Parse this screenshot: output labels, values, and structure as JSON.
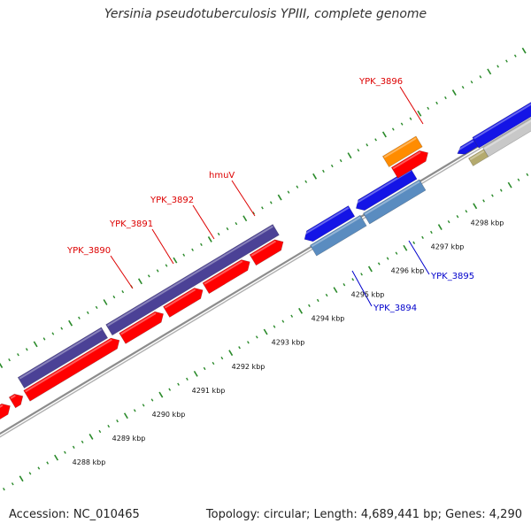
{
  "title": "Yersinia pseudotuberculosis YPIII, complete genome",
  "footer": {
    "accession": "Accession: NC_010465",
    "summary": "Topology: circular; Length: 4,689,441 bp; Genes: 4,290"
  },
  "colors": {
    "red": "#ff0000",
    "navy": "#4b4196",
    "blue": "#1414e6",
    "steel": "#5a8cc0",
    "orange": "#ff8c00",
    "cyan": "#20c8d8",
    "olive": "#8caa3c",
    "gray": "#c8c8c8",
    "khaki": "#b4aa6e",
    "backbone": "#8c8c8c",
    "tick": "#2a8a2a",
    "label_red": "#dd0000",
    "label_blue": "#0000cc"
  },
  "ticks": [
    {
      "label": "4288 kbp"
    },
    {
      "label": "4289 kbp"
    },
    {
      "label": "4290 kbp"
    },
    {
      "label": "4291 kbp"
    },
    {
      "label": "4292 kbp"
    },
    {
      "label": "4293 kbp"
    },
    {
      "label": "4294 kbp"
    },
    {
      "label": "4295 kbp"
    },
    {
      "label": "4296 kbp"
    },
    {
      "label": "4297 kbp"
    },
    {
      "label": "4298 kbp"
    }
  ],
  "gene_labels": [
    {
      "text": "YPK_3890",
      "strand": "top"
    },
    {
      "text": "YPK_3891",
      "strand": "top"
    },
    {
      "text": "YPK_3892",
      "strand": "top"
    },
    {
      "text": "hmuV",
      "strand": "top"
    },
    {
      "text": "YPK_3896",
      "strand": "top"
    },
    {
      "text": "YPK_3894",
      "strand": "bottom"
    },
    {
      "text": "YPK_3895",
      "strand": "bottom"
    }
  ]
}
